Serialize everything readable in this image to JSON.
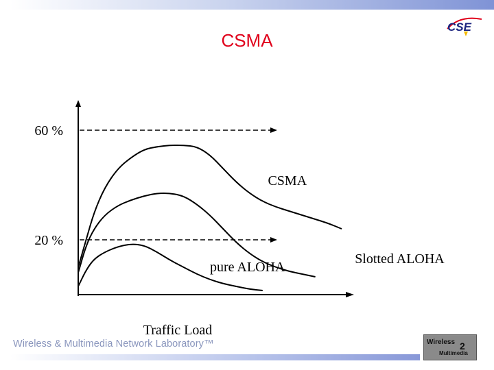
{
  "slide": {
    "title": "CSMA",
    "footer": "Wireless & Multimedia Network Laboratory™",
    "logos": {
      "cse": {
        "text": "CSE",
        "icon": "cse-logo-icon"
      },
      "wm": {
        "line1": "Wireless",
        "line2": "Multimedia",
        "number": "2",
        "icon": "wireless-multimedia-logo-icon"
      }
    },
    "colors": {
      "title": "#e0001b",
      "footer": "#8a96bd",
      "accent": "#7f93d6"
    }
  },
  "chart_data": {
    "type": "line",
    "title": "",
    "xlabel": "Traffic Load",
    "ylabel": "",
    "xlim": [
      0,
      10
    ],
    "ylim": [
      0,
      70
    ],
    "y_ticks": [
      {
        "value": 60,
        "label": "60 %"
      },
      {
        "value": 20,
        "label": "20 %"
      }
    ],
    "reference_lines": [
      {
        "value": 60,
        "style": "dashed",
        "x_end": 7.5
      },
      {
        "value": 20,
        "style": "dashed",
        "x_end": 7.5
      }
    ],
    "series": [
      {
        "name": "CSMA",
        "label_at": [
          7.2,
          40
        ],
        "x": [
          0,
          0.3,
          0.6,
          1.0,
          1.5,
          2.0,
          2.5,
          3.0,
          3.5,
          4.0,
          4.5,
          5.0,
          5.5,
          6.0,
          6.5,
          7.0,
          7.5,
          8.0,
          8.5,
          9.0,
          9.5,
          10.0
        ],
        "y": [
          10,
          20,
          30,
          39,
          46,
          50,
          53,
          54,
          54.5,
          54.5,
          54,
          51,
          46,
          41,
          37,
          34,
          32,
          30.5,
          29,
          27.5,
          26,
          24
        ]
      },
      {
        "name": "Slotted ALOHA",
        "label_at": [
          10.5,
          11.5
        ],
        "x": [
          0,
          0.3,
          0.6,
          1.0,
          1.5,
          2.0,
          2.5,
          3.0,
          3.5,
          4.0,
          4.5,
          5.0,
          5.5,
          6.0,
          6.5,
          7.0,
          7.5,
          8.0,
          8.5,
          9.0
        ],
        "y": [
          8,
          18,
          24,
          29,
          32.5,
          34.5,
          36,
          37,
          37,
          36,
          33,
          29,
          24,
          19,
          15,
          12,
          10,
          8.5,
          7.5,
          6.5
        ]
      },
      {
        "name": "pure ALOHA",
        "label_at": [
          5.0,
          8.5
        ],
        "x": [
          0,
          0.3,
          0.6,
          1.0,
          1.5,
          2.0,
          2.5,
          3.0,
          3.5,
          4.0,
          4.5,
          5.0,
          5.5,
          6.0,
          6.5,
          7.0
        ],
        "y": [
          3,
          9,
          13,
          15.5,
          17.5,
          18.5,
          18,
          15.5,
          12.5,
          10,
          7.5,
          5.5,
          4,
          3,
          2,
          1.5
        ]
      }
    ],
    "grid": false,
    "legend": "none"
  }
}
